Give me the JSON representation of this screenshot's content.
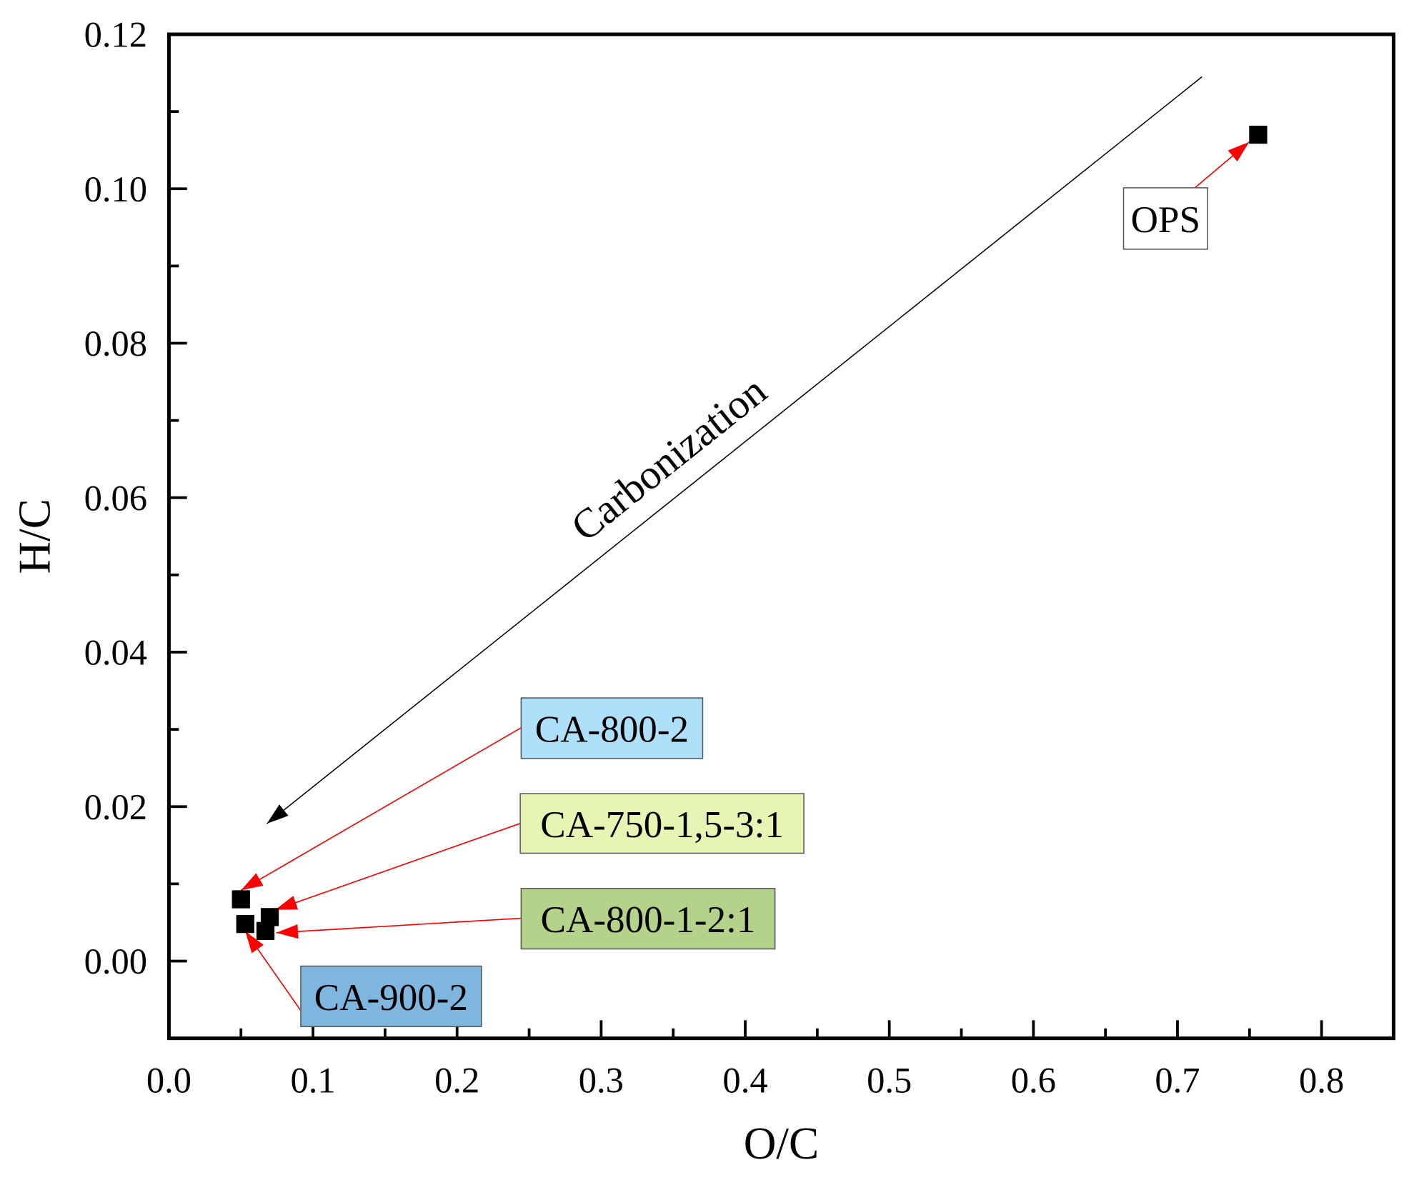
{
  "chart_data": {
    "type": "scatter",
    "title": "",
    "xlabel": "O/C",
    "ylabel": "H/C",
    "xlim": [
      0,
      0.85
    ],
    "ylim": [
      -0.01,
      0.12
    ],
    "x_ticks": [
      "0.0",
      "0.1",
      "0.2",
      "0.3",
      "0.4",
      "0.5",
      "0.6",
      "0.7",
      "0.8"
    ],
    "y_ticks": [
      "0.00",
      "0.02",
      "0.04",
      "0.06",
      "0.08",
      "0.10",
      "0.12"
    ],
    "grid": false,
    "marker_color": "#000000",
    "arrow_color": "#ff0000",
    "points": [
      {
        "label": "OPS",
        "x": 0.756,
        "y": 0.107,
        "box_color": "#ffffff"
      },
      {
        "label": "CA-800-2",
        "x": 0.05,
        "y": 0.008,
        "box_color": "#aee0fa"
      },
      {
        "label": "CA-750-1,5-3:1",
        "x": 0.07,
        "y": 0.0057,
        "box_color": "#e6f5b4"
      },
      {
        "label": "CA-800-1-2:1",
        "x": 0.067,
        "y": 0.0039,
        "box_color": "#b5d28a"
      },
      {
        "label": "CA-900-2",
        "x": 0.053,
        "y": 0.0048,
        "box_color": "#7fb6df"
      }
    ],
    "annotation": {
      "text": "Carbonization",
      "from": [
        0.717,
        0.1145
      ],
      "to": [
        0.068,
        0.0178
      ]
    }
  }
}
